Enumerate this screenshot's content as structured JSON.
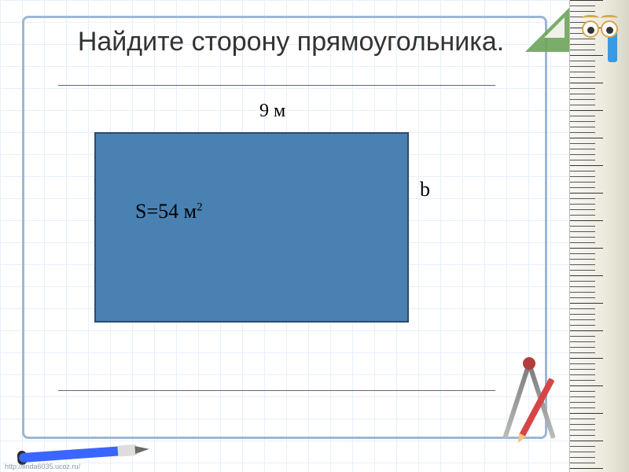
{
  "title": "Найдите сторону прямоугольника.",
  "rect": {
    "width_label": "9 м",
    "side_label": "b",
    "area_prefix": "S=54 м",
    "area_exponent": "2",
    "fill_color": "#4981b3",
    "border_color": "#2a4c6e"
  },
  "layout": {
    "frame_border_color": "#9db7d4",
    "grid_line_color": "#e8f0fa",
    "hr_color": "#666666"
  },
  "ruler": {
    "bg_grad_start": "#f8f8f4",
    "bg_grad_end": "#d8d6c6",
    "accent_color": "#3a99e0"
  },
  "footer_url": "http://linda6035.ucoz.ru/"
}
